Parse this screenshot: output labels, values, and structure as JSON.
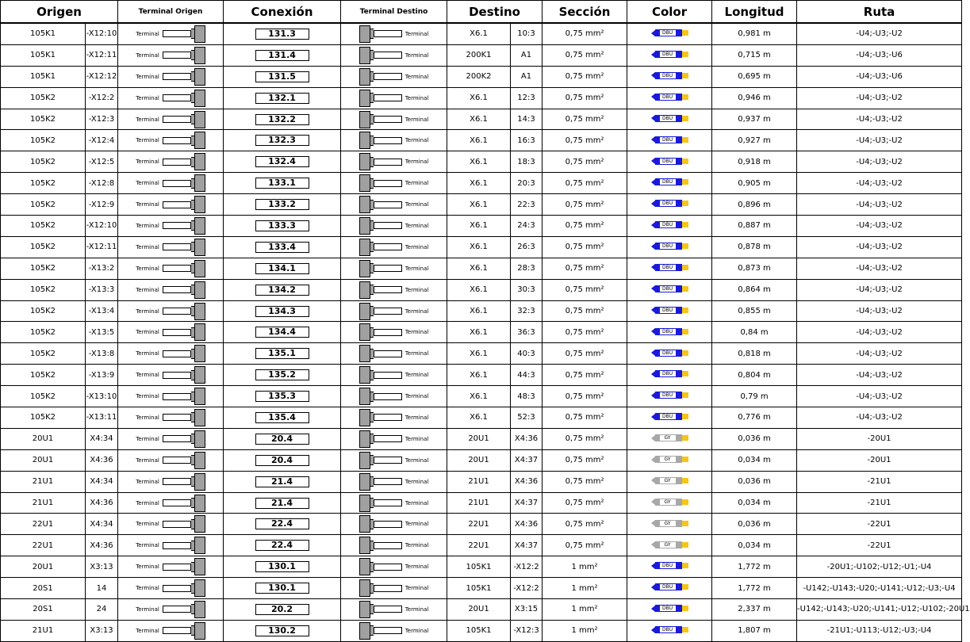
{
  "headers": {
    "origen": "Origen",
    "terminal_origen": "Terminal Origen",
    "conexion": "Conexión",
    "terminal_destino": "Terminal Destino",
    "destino": "Destino",
    "seccion": "Sección",
    "color": "Color",
    "longitud": "Longitud",
    "ruta": "Ruta"
  },
  "terminal_label": "Terminal",
  "colors": {
    "DBU": "#1a1ad8",
    "GY": "#a8a8a8",
    "tip_yellow": "#f5c518"
  },
  "rows": [
    {
      "o1": "105K1",
      "o2": "-X12:10",
      "conn": "131.3",
      "d1": "X6.1",
      "d2": "10:3",
      "sec": "0,75 mm²",
      "color": "DBU",
      "len": "0,981 m",
      "route": "-U4;-U3;-U2"
    },
    {
      "o1": "105K1",
      "o2": "-X12:11",
      "conn": "131.4",
      "d1": "200K1",
      "d2": "A1",
      "sec": "0,75 mm²",
      "color": "DBU",
      "len": "0,715 m",
      "route": "-U4;-U3;-U6"
    },
    {
      "o1": "105K1",
      "o2": "-X12:12",
      "conn": "131.5",
      "d1": "200K2",
      "d2": "A1",
      "sec": "0,75 mm²",
      "color": "DBU",
      "len": "0,695 m",
      "route": "-U4;-U3;-U6"
    },
    {
      "o1": "105K2",
      "o2": "-X12:2",
      "conn": "132.1",
      "d1": "X6.1",
      "d2": "12:3",
      "sec": "0,75 mm²",
      "color": "DBU",
      "len": "0,946 m",
      "route": "-U4;-U3;-U2"
    },
    {
      "o1": "105K2",
      "o2": "-X12:3",
      "conn": "132.2",
      "d1": "X6.1",
      "d2": "14:3",
      "sec": "0,75 mm²",
      "color": "DBU",
      "len": "0,937 m",
      "route": "-U4;-U3;-U2"
    },
    {
      "o1": "105K2",
      "o2": "-X12:4",
      "conn": "132.3",
      "d1": "X6.1",
      "d2": "16:3",
      "sec": "0,75 mm²",
      "color": "DBU",
      "len": "0,927 m",
      "route": "-U4;-U3;-U2"
    },
    {
      "o1": "105K2",
      "o2": "-X12:5",
      "conn": "132.4",
      "d1": "X6.1",
      "d2": "18:3",
      "sec": "0,75 mm²",
      "color": "DBU",
      "len": "0,918 m",
      "route": "-U4;-U3;-U2"
    },
    {
      "o1": "105K2",
      "o2": "-X12:8",
      "conn": "133.1",
      "d1": "X6.1",
      "d2": "20:3",
      "sec": "0,75 mm²",
      "color": "DBU",
      "len": "0,905 m",
      "route": "-U4;-U3;-U2"
    },
    {
      "o1": "105K2",
      "o2": "-X12:9",
      "conn": "133.2",
      "d1": "X6.1",
      "d2": "22:3",
      "sec": "0,75 mm²",
      "color": "DBU",
      "len": "0,896 m",
      "route": "-U4;-U3;-U2"
    },
    {
      "o1": "105K2",
      "o2": "-X12:10",
      "conn": "133.3",
      "d1": "X6.1",
      "d2": "24:3",
      "sec": "0,75 mm²",
      "color": "DBU",
      "len": "0,887 m",
      "route": "-U4;-U3;-U2"
    },
    {
      "o1": "105K2",
      "o2": "-X12:11",
      "conn": "133.4",
      "d1": "X6.1",
      "d2": "26:3",
      "sec": "0,75 mm²",
      "color": "DBU",
      "len": "0,878 m",
      "route": "-U4;-U3;-U2"
    },
    {
      "o1": "105K2",
      "o2": "-X13:2",
      "conn": "134.1",
      "d1": "X6.1",
      "d2": "28:3",
      "sec": "0,75 mm²",
      "color": "DBU",
      "len": "0,873 m",
      "route": "-U4;-U3;-U2"
    },
    {
      "o1": "105K2",
      "o2": "-X13:3",
      "conn": "134.2",
      "d1": "X6.1",
      "d2": "30:3",
      "sec": "0,75 mm²",
      "color": "DBU",
      "len": "0,864 m",
      "route": "-U4;-U3;-U2"
    },
    {
      "o1": "105K2",
      "o2": "-X13:4",
      "conn": "134.3",
      "d1": "X6.1",
      "d2": "32:3",
      "sec": "0,75 mm²",
      "color": "DBU",
      "len": "0,855 m",
      "route": "-U4;-U3;-U2"
    },
    {
      "o1": "105K2",
      "o2": "-X13:5",
      "conn": "134.4",
      "d1": "X6.1",
      "d2": "36:3",
      "sec": "0,75 mm²",
      "color": "DBU",
      "len": "0,84 m",
      "route": "-U4;-U3;-U2"
    },
    {
      "o1": "105K2",
      "o2": "-X13:8",
      "conn": "135.1",
      "d1": "X6.1",
      "d2": "40:3",
      "sec": "0,75 mm²",
      "color": "DBU",
      "len": "0,818 m",
      "route": "-U4;-U3;-U2"
    },
    {
      "o1": "105K2",
      "o2": "-X13:9",
      "conn": "135.2",
      "d1": "X6.1",
      "d2": "44:3",
      "sec": "0,75 mm²",
      "color": "DBU",
      "len": "0,804 m",
      "route": "-U4;-U3;-U2"
    },
    {
      "o1": "105K2",
      "o2": "-X13:10",
      "conn": "135.3",
      "d1": "X6.1",
      "d2": "48:3",
      "sec": "0,75 mm²",
      "color": "DBU",
      "len": "0,79 m",
      "route": "-U4;-U3;-U2"
    },
    {
      "o1": "105K2",
      "o2": "-X13:11",
      "conn": "135.4",
      "d1": "X6.1",
      "d2": "52:3",
      "sec": "0,75 mm²",
      "color": "DBU",
      "len": "0,776 m",
      "route": "-U4;-U3;-U2"
    },
    {
      "o1": "20U1",
      "o2": "X4:34",
      "conn": "20.4",
      "d1": "20U1",
      "d2": "X4:36",
      "sec": "0,75 mm²",
      "color": "GY",
      "len": "0,036 m",
      "route": "-20U1"
    },
    {
      "o1": "20U1",
      "o2": "X4:36",
      "conn": "20.4",
      "d1": "20U1",
      "d2": "X4:37",
      "sec": "0,75 mm²",
      "color": "GY",
      "len": "0,034 m",
      "route": "-20U1"
    },
    {
      "o1": "21U1",
      "o2": "X4:34",
      "conn": "21.4",
      "d1": "21U1",
      "d2": "X4:36",
      "sec": "0,75 mm²",
      "color": "GY",
      "len": "0,036 m",
      "route": "-21U1"
    },
    {
      "o1": "21U1",
      "o2": "X4:36",
      "conn": "21.4",
      "d1": "21U1",
      "d2": "X4:37",
      "sec": "0,75 mm²",
      "color": "GY",
      "len": "0,034 m",
      "route": "-21U1"
    },
    {
      "o1": "22U1",
      "o2": "X4:34",
      "conn": "22.4",
      "d1": "22U1",
      "d2": "X4:36",
      "sec": "0,75 mm²",
      "color": "GY",
      "len": "0,036 m",
      "route": "-22U1"
    },
    {
      "o1": "22U1",
      "o2": "X4:36",
      "conn": "22.4",
      "d1": "22U1",
      "d2": "X4:37",
      "sec": "0,75 mm²",
      "color": "GY",
      "len": "0,034 m",
      "route": "-22U1"
    },
    {
      "o1": "20U1",
      "o2": "X3:13",
      "conn": "130.1",
      "d1": "105K1",
      "d2": "-X12:2",
      "sec": "1 mm²",
      "color": "DBU",
      "len": "1,772 m",
      "route": "-20U1;-U102;-U12;-U1;-U4"
    },
    {
      "o1": "20S1",
      "o2": "14",
      "conn": "130.1",
      "d1": "105K1",
      "d2": "-X12:2",
      "sec": "1 mm²",
      "color": "DBU",
      "len": "1,772 m",
      "route": "-U142;-U143;-U20;-U141;-U12;-U3;-U4"
    },
    {
      "o1": "20S1",
      "o2": "24",
      "conn": "20.2",
      "d1": "20U1",
      "d2": "X3:15",
      "sec": "1 mm²",
      "color": "DBU",
      "len": "2,337 m",
      "route": "-U142;-U143;-U20;-U141;-U12;-U102;-20U1"
    },
    {
      "o1": "21U1",
      "o2": "X3:13",
      "conn": "130.2",
      "d1": "105K1",
      "d2": "-X12:3",
      "sec": "1 mm²",
      "color": "DBU",
      "len": "1,807 m",
      "route": "-21U1;-U113;-U12;-U3;-U4"
    }
  ]
}
